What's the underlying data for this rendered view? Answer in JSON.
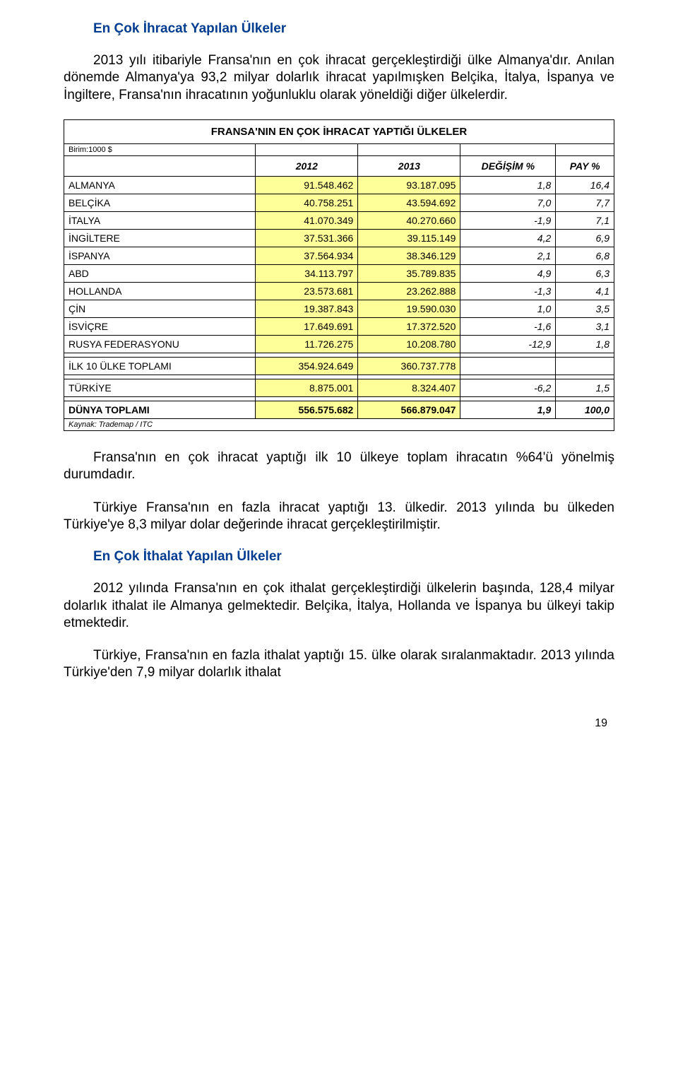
{
  "heading1": "En Çok İhracat Yapılan Ülkeler",
  "para1": "2013 yılı itibariyle Fransa'nın en çok ihracat gerçekleştirdiği ülke Almanya'dır. Anılan dönemde Almanya'ya 93,2 milyar dolarlık ihracat yapılmışken Belçika, İtalya, İspanya ve İngiltere, Fransa'nın ihracatının yoğunluklu olarak yöneldiği diğer ülkelerdir.",
  "table": {
    "title": "FRANSA'NIN EN ÇOK İHRACAT YAPTIĞI ÜLKELER",
    "unit_label": "Birim:1000 $",
    "columns": {
      "c1": "",
      "c2": "2012",
      "c3": "2013",
      "c4": "DEĞİŞİM %",
      "c5": "PAY %"
    },
    "rows": [
      {
        "label": "ALMANYA",
        "v2012": "91.548.462",
        "v2013": "93.187.095",
        "chg": "1,8",
        "share": "16,4"
      },
      {
        "label": "BELÇİKA",
        "v2012": "40.758.251",
        "v2013": "43.594.692",
        "chg": "7,0",
        "share": "7,7"
      },
      {
        "label": "İTALYA",
        "v2012": "41.070.349",
        "v2013": "40.270.660",
        "chg": "-1,9",
        "share": "7,1"
      },
      {
        "label": "İNGİLTERE",
        "v2012": "37.531.366",
        "v2013": "39.115.149",
        "chg": "4,2",
        "share": "6,9"
      },
      {
        "label": "İSPANYA",
        "v2012": "37.564.934",
        "v2013": "38.346.129",
        "chg": "2,1",
        "share": "6,8"
      },
      {
        "label": "ABD",
        "v2012": "34.113.797",
        "v2013": "35.789.835",
        "chg": "4,9",
        "share": "6,3"
      },
      {
        "label": "HOLLANDA",
        "v2012": "23.573.681",
        "v2013": "23.262.888",
        "chg": "-1,3",
        "share": "4,1"
      },
      {
        "label": "ÇİN",
        "v2012": "19.387.843",
        "v2013": "19.590.030",
        "chg": "1,0",
        "share": "3,5"
      },
      {
        "label": "İSVİÇRE",
        "v2012": "17.649.691",
        "v2013": "17.372.520",
        "chg": "-1,6",
        "share": "3,1"
      },
      {
        "label": "RUSYA FEDERASYONU",
        "v2012": "11.726.275",
        "v2013": "10.208.780",
        "chg": "-12,9",
        "share": "1,8"
      }
    ],
    "top10": {
      "label": "İLK 10 ÜLKE TOPLAMI",
      "v2012": "354.924.649",
      "v2013": "360.737.778",
      "chg": "",
      "share": ""
    },
    "turkey": {
      "label": "TÜRKİYE",
      "v2012": "8.875.001",
      "v2013": "8.324.407",
      "chg": "-6,2",
      "share": "1,5"
    },
    "world": {
      "label": "DÜNYA TOPLAMI",
      "v2012": "556.575.682",
      "v2013": "566.879.047",
      "chg": "1,9",
      "share": "100,0"
    },
    "source": "Kaynak: Trademap / ITC",
    "colors": {
      "highlight": "#ffff99",
      "border": "#000000",
      "bg": "#ffffff"
    }
  },
  "para2": "Fransa'nın en çok ihracat yaptığı ilk 10 ülkeye toplam ihracatın %64'ü yönelmiş durumdadır.",
  "para3": "Türkiye Fransa'nın en fazla ihracat yaptığı 13. ülkedir. 2013 yılında bu ülkeden Türkiye'ye 8,3 milyar dolar değerinde ihracat gerçekleştirilmiştir.",
  "heading2": "En Çok İthalat Yapılan Ülkeler",
  "para4": "2012 yılında Fransa'nın en çok ithalat gerçekleştirdiği ülkelerin başında, 128,4 milyar dolarlık ithalat ile Almanya gelmektedir. Belçika, İtalya, Hollanda ve İspanya bu ülkeyi takip etmektedir.",
  "para5": "Türkiye, Fransa'nın en fazla ithalat yaptığı 15. ülke olarak sıralanmaktadır. 2013 yılında Türkiye'den 7,9 milyar dolarlık ithalat",
  "page_number": "19"
}
